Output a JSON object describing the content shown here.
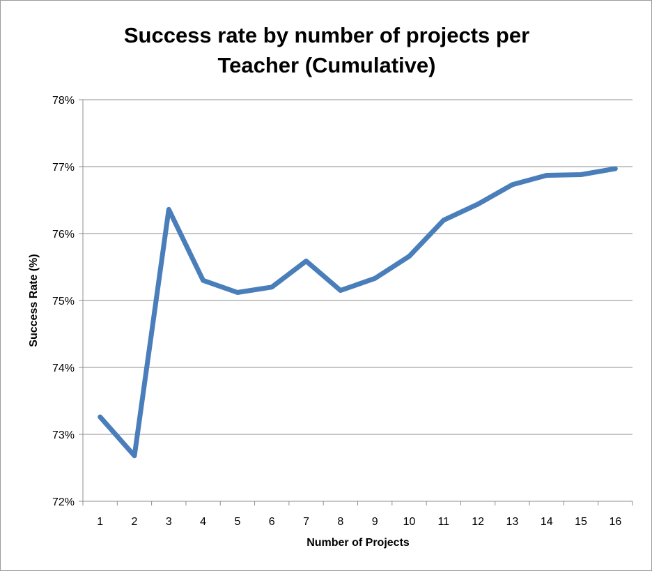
{
  "chart_data": {
    "type": "line",
    "title_lines": [
      "Success rate by number of projects per",
      "Teacher (Cumulative)"
    ],
    "xlabel": "Number of Projects",
    "ylabel": "Success Rate (%)",
    "categories": [
      "1",
      "2",
      "3",
      "4",
      "5",
      "6",
      "7",
      "8",
      "9",
      "10",
      "11",
      "12",
      "13",
      "14",
      "15",
      "16"
    ],
    "series": [
      {
        "values": [
          73.26,
          72.68,
          76.36,
          75.3,
          75.12,
          75.2,
          75.59,
          75.15,
          75.33,
          75.66,
          76.2,
          76.44,
          76.73,
          76.87,
          76.88,
          76.97
        ]
      }
    ],
    "ylim": [
      72,
      78
    ],
    "yticks": [
      72,
      73,
      74,
      75,
      76,
      77,
      78
    ],
    "ytick_labels": [
      "72%",
      "73%",
      "74%",
      "75%",
      "76%",
      "77%",
      "78%"
    ],
    "grid": "horizontal",
    "legend": "none",
    "line_color": "#4a7ebb"
  }
}
